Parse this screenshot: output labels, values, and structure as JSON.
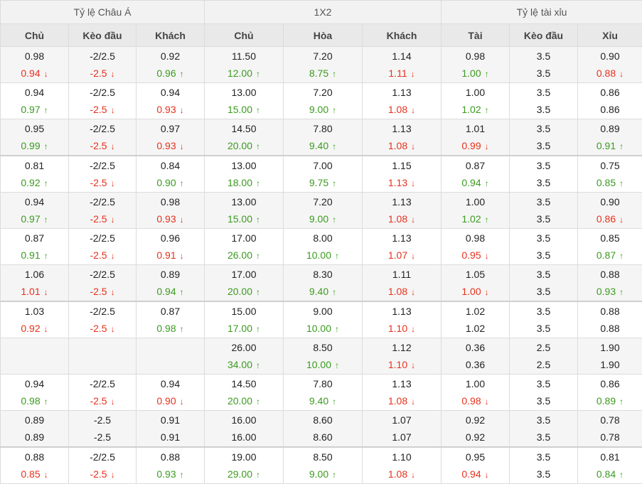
{
  "groups": [
    "Tỷ lệ Châu Á",
    "1X2",
    "Tỷ lệ tài xỉu"
  ],
  "columns": [
    "Chủ",
    "Kèo đầu",
    "Khách",
    "Chủ",
    "Hòa",
    "Khách",
    "Tài",
    "Kèo đầu",
    "Xỉu"
  ],
  "rows": [
    {
      "cells": [
        [
          "0.98",
          "0.94",
          "dn"
        ],
        [
          "-2/2.5",
          "-2.5",
          "dn"
        ],
        [
          "0.92",
          "0.96",
          "up"
        ],
        [
          "11.50",
          "12.00",
          "up"
        ],
        [
          "7.20",
          "8.75",
          "up"
        ],
        [
          "1.14",
          "1.11",
          "dn"
        ],
        [
          "0.98",
          "1.00",
          "up"
        ],
        [
          "3.5",
          "3.5",
          ""
        ],
        [
          "0.90",
          "0.88",
          "dn"
        ]
      ]
    },
    {
      "cells": [
        [
          "0.94",
          "0.97",
          "up"
        ],
        [
          "-2/2.5",
          "-2.5",
          "dn"
        ],
        [
          "0.94",
          "0.93",
          "dn"
        ],
        [
          "13.00",
          "15.00",
          "up"
        ],
        [
          "7.20",
          "9.00",
          "up"
        ],
        [
          "1.13",
          "1.08",
          "dn"
        ],
        [
          "1.00",
          "1.02",
          "up"
        ],
        [
          "3.5",
          "3.5",
          ""
        ],
        [
          "0.86",
          "0.86",
          ""
        ]
      ]
    },
    {
      "cells": [
        [
          "0.95",
          "0.99",
          "up"
        ],
        [
          "-2/2.5",
          "-2.5",
          "dn"
        ],
        [
          "0.97",
          "0.93",
          "dn"
        ],
        [
          "14.50",
          "20.00",
          "up"
        ],
        [
          "7.80",
          "9.40",
          "up"
        ],
        [
          "1.13",
          "1.08",
          "dn"
        ],
        [
          "1.01",
          "0.99",
          "dn"
        ],
        [
          "3.5",
          "3.5",
          ""
        ],
        [
          "0.89",
          "0.91",
          "up"
        ]
      ]
    },
    {
      "sep": true,
      "cells": [
        [
          "0.81",
          "0.92",
          "up"
        ],
        [
          "-2/2.5",
          "-2.5",
          "dn"
        ],
        [
          "0.84",
          "0.90",
          "up"
        ],
        [
          "13.00",
          "18.00",
          "up"
        ],
        [
          "7.00",
          "9.75",
          "up"
        ],
        [
          "1.15",
          "1.13",
          "dn"
        ],
        [
          "0.87",
          "0.94",
          "up"
        ],
        [
          "3.5",
          "3.5",
          ""
        ],
        [
          "0.75",
          "0.85",
          "up"
        ]
      ]
    },
    {
      "cells": [
        [
          "0.94",
          "0.97",
          "up"
        ],
        [
          "-2/2.5",
          "-2.5",
          "dn"
        ],
        [
          "0.98",
          "0.93",
          "dn"
        ],
        [
          "13.00",
          "15.00",
          "up"
        ],
        [
          "7.20",
          "9.00",
          "up"
        ],
        [
          "1.13",
          "1.08",
          "dn"
        ],
        [
          "1.00",
          "1.02",
          "up"
        ],
        [
          "3.5",
          "3.5",
          ""
        ],
        [
          "0.90",
          "0.86",
          "dn"
        ]
      ]
    },
    {
      "cells": [
        [
          "0.87",
          "0.91",
          "up"
        ],
        [
          "-2/2.5",
          "-2.5",
          "dn"
        ],
        [
          "0.96",
          "0.91",
          "dn"
        ],
        [
          "17.00",
          "26.00",
          "up"
        ],
        [
          "8.00",
          "10.00",
          "up"
        ],
        [
          "1.13",
          "1.07",
          "dn"
        ],
        [
          "0.98",
          "0.95",
          "dn"
        ],
        [
          "3.5",
          "3.5",
          ""
        ],
        [
          "0.85",
          "0.87",
          "up"
        ]
      ]
    },
    {
      "cells": [
        [
          "1.06",
          "1.01",
          "dn"
        ],
        [
          "-2/2.5",
          "-2.5",
          "dn"
        ],
        [
          "0.89",
          "0.94",
          "up"
        ],
        [
          "17.00",
          "20.00",
          "up"
        ],
        [
          "8.30",
          "9.40",
          "up"
        ],
        [
          "1.11",
          "1.08",
          "dn"
        ],
        [
          "1.05",
          "1.00",
          "dn"
        ],
        [
          "3.5",
          "3.5",
          ""
        ],
        [
          "0.88",
          "0.93",
          "up"
        ]
      ]
    },
    {
      "sep": true,
      "cells": [
        [
          "1.03",
          "0.92",
          "dn"
        ],
        [
          "-2/2.5",
          "-2.5",
          "dn"
        ],
        [
          "0.87",
          "0.98",
          "up"
        ],
        [
          "15.00",
          "17.00",
          "up"
        ],
        [
          "9.00",
          "10.00",
          "up"
        ],
        [
          "1.13",
          "1.10",
          "dn"
        ],
        [
          "1.02",
          "1.02",
          ""
        ],
        [
          "3.5",
          "3.5",
          ""
        ],
        [
          "0.88",
          "0.88",
          ""
        ]
      ]
    },
    {
      "cells": [
        [
          "",
          "",
          ""
        ],
        [
          "",
          "",
          ""
        ],
        [
          "",
          "",
          ""
        ],
        [
          "26.00",
          "34.00",
          "up"
        ],
        [
          "8.50",
          "10.00",
          "up"
        ],
        [
          "1.12",
          "1.10",
          "dn"
        ],
        [
          "0.36",
          "0.36",
          ""
        ],
        [
          "2.5",
          "2.5",
          ""
        ],
        [
          "1.90",
          "1.90",
          ""
        ]
      ]
    },
    {
      "cells": [
        [
          "0.94",
          "0.98",
          "up"
        ],
        [
          "-2/2.5",
          "-2.5",
          "dn"
        ],
        [
          "0.94",
          "0.90",
          "dn"
        ],
        [
          "14.50",
          "20.00",
          "up"
        ],
        [
          "7.80",
          "9.40",
          "up"
        ],
        [
          "1.13",
          "1.08",
          "dn"
        ],
        [
          "1.00",
          "0.98",
          "dn"
        ],
        [
          "3.5",
          "3.5",
          ""
        ],
        [
          "0.86",
          "0.89",
          "up"
        ]
      ]
    },
    {
      "cells": [
        [
          "0.89",
          "0.89",
          ""
        ],
        [
          "-2.5",
          "-2.5",
          ""
        ],
        [
          "0.91",
          "0.91",
          ""
        ],
        [
          "16.00",
          "16.00",
          ""
        ],
        [
          "8.60",
          "8.60",
          ""
        ],
        [
          "1.07",
          "1.07",
          ""
        ],
        [
          "0.92",
          "0.92",
          ""
        ],
        [
          "3.5",
          "3.5",
          ""
        ],
        [
          "0.78",
          "0.78",
          ""
        ]
      ]
    },
    {
      "sep": true,
      "cells": [
        [
          "0.88",
          "0.85",
          "dn"
        ],
        [
          "-2/2.5",
          "-2.5",
          "dn"
        ],
        [
          "0.88",
          "0.93",
          "up"
        ],
        [
          "19.00",
          "29.00",
          "up"
        ],
        [
          "8.50",
          "9.00",
          "up"
        ],
        [
          "1.10",
          "1.08",
          "dn"
        ],
        [
          "0.95",
          "0.94",
          "dn"
        ],
        [
          "3.5",
          "3.5",
          ""
        ],
        [
          "0.81",
          "0.84",
          "up"
        ]
      ]
    }
  ]
}
